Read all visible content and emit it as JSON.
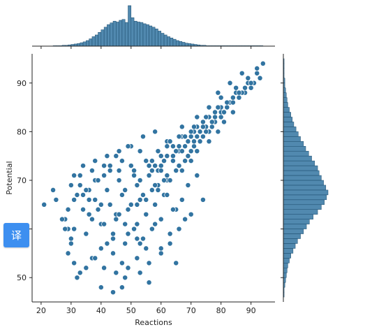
{
  "chart_data": {
    "type": "scatter",
    "title": "",
    "xlabel": "Reactions",
    "ylabel": "Potential",
    "xlim": [
      17,
      98
    ],
    "ylim": [
      45,
      96
    ],
    "xticks": [
      20,
      30,
      40,
      50,
      60,
      70,
      80,
      90
    ],
    "yticks": [
      50,
      60,
      70,
      80,
      90
    ],
    "grid": false,
    "legend": "none",
    "point_color": "#3274a1",
    "point_edge_color": "#ffffff",
    "hist_color": "#3274a1",
    "x": [
      21,
      24,
      25,
      28,
      29,
      30,
      29,
      31,
      33,
      32,
      30,
      28,
      27,
      29,
      31,
      34,
      36,
      38,
      41,
      43,
      46,
      40,
      37,
      35,
      42,
      44,
      47,
      49,
      52,
      55,
      54,
      51,
      48,
      45,
      39,
      36,
      33,
      31,
      34,
      38,
      42,
      46,
      50,
      53,
      57,
      59,
      62,
      61,
      58,
      55,
      52,
      49,
      44,
      40,
      37,
      41,
      45,
      48,
      53,
      56,
      60,
      63,
      66,
      68,
      65,
      62,
      59,
      56,
      50,
      47,
      43,
      39,
      35,
      32,
      30,
      33,
      37,
      41,
      45,
      49,
      54,
      58,
      62,
      66,
      70,
      72,
      69,
      67,
      64,
      60,
      57,
      52,
      48,
      44,
      40,
      36,
      34,
      38,
      42,
      46,
      51,
      55,
      59,
      63,
      67,
      71,
      74,
      76,
      73,
      70,
      68,
      65,
      61,
      57,
      53,
      49,
      45,
      41,
      43,
      47,
      52,
      56,
      60,
      64,
      68,
      72,
      75,
      78,
      80,
      77,
      74,
      71,
      69,
      66,
      62,
      58,
      54,
      50,
      46,
      48,
      53,
      57,
      61,
      65,
      69,
      73,
      77,
      80,
      82,
      84,
      81,
      79,
      76,
      72,
      70,
      67,
      63,
      59,
      55,
      51,
      56,
      60,
      64,
      68,
      72,
      76,
      80,
      83,
      86,
      85,
      83,
      81,
      78,
      75,
      71,
      67,
      64,
      60,
      58,
      62,
      66,
      70,
      74,
      78,
      82,
      86,
      88,
      90,
      89,
      87,
      84,
      81,
      77,
      73,
      69,
      65,
      62,
      66,
      71,
      75,
      79,
      84,
      88,
      91,
      93,
      92,
      90,
      86,
      82,
      78,
      74,
      70,
      67,
      72,
      76,
      80,
      85,
      89,
      92,
      94,
      87,
      83,
      79,
      44,
      47,
      56,
      65,
      40,
      38,
      53,
      60,
      35,
      31,
      58,
      63,
      70,
      74,
      52
    ],
    "y": [
      65,
      68,
      66,
      62,
      60,
      58,
      55,
      53,
      51,
      50,
      57,
      60,
      62,
      64,
      66,
      67,
      68,
      70,
      71,
      73,
      72,
      65,
      62,
      59,
      57,
      55,
      53,
      52,
      54,
      56,
      58,
      60,
      61,
      63,
      64,
      66,
      69,
      71,
      73,
      74,
      75,
      76,
      77,
      76,
      74,
      72,
      70,
      67,
      65,
      63,
      61,
      59,
      58,
      56,
      54,
      52,
      51,
      50,
      51,
      53,
      55,
      57,
      60,
      62,
      64,
      67,
      69,
      71,
      73,
      74,
      72,
      70,
      68,
      67,
      69,
      71,
      72,
      73,
      75,
      77,
      79,
      80,
      78,
      76,
      74,
      71,
      69,
      66,
      64,
      62,
      60,
      58,
      57,
      59,
      61,
      63,
      64,
      66,
      68,
      70,
      72,
      74,
      76,
      78,
      79,
      80,
      82,
      80,
      78,
      76,
      74,
      72,
      70,
      68,
      66,
      64,
      62,
      61,
      65,
      67,
      69,
      71,
      73,
      75,
      77,
      79,
      81,
      82,
      83,
      81,
      79,
      77,
      75,
      73,
      71,
      69,
      67,
      65,
      63,
      68,
      70,
      72,
      74,
      76,
      78,
      80,
      82,
      84,
      85,
      84,
      82,
      80,
      78,
      76,
      74,
      72,
      70,
      68,
      66,
      71,
      73,
      75,
      77,
      79,
      81,
      83,
      85,
      86,
      87,
      88,
      86,
      84,
      82,
      80,
      78,
      76,
      74,
      72,
      73,
      75,
      77,
      79,
      81,
      83,
      85,
      87,
      88,
      89,
      90,
      88,
      86,
      84,
      82,
      80,
      78,
      76,
      77,
      79,
      81,
      83,
      85,
      87,
      89,
      90,
      91,
      92,
      90,
      88,
      86,
      84,
      82,
      80,
      81,
      83,
      85,
      87,
      89,
      91,
      93,
      94,
      92,
      90,
      88,
      47,
      48,
      49,
      53,
      48,
      54,
      57,
      56,
      52,
      60,
      61,
      59,
      63,
      66,
      65
    ],
    "x_marginal": {
      "bin_start": 24,
      "bin_width": 1,
      "counts": [
        1,
        1,
        1,
        2,
        2,
        3,
        4,
        5,
        6,
        8,
        10,
        13,
        17,
        22,
        26,
        32,
        38,
        44,
        50,
        54,
        58,
        56,
        60,
        62,
        55,
        94,
        66,
        58,
        56,
        55,
        52,
        50,
        47,
        44,
        40,
        35,
        30,
        26,
        22,
        19,
        16,
        13,
        11,
        9,
        7,
        6,
        5,
        4,
        3,
        2,
        2,
        1,
        1,
        1,
        1,
        1,
        1,
        1,
        1,
        1,
        1,
        1,
        1,
        1,
        1,
        1,
        1,
        1,
        1,
        1
      ]
    },
    "y_marginal": {
      "bin_start": 46,
      "bin_width": 1,
      "counts": [
        1,
        1,
        2,
        3,
        4,
        5,
        6,
        8,
        10,
        13,
        16,
        19,
        23,
        27,
        31,
        35,
        40,
        46,
        51,
        55,
        58,
        60,
        57,
        54,
        51,
        48,
        46,
        42,
        38,
        34,
        30,
        27,
        23,
        20,
        17,
        14,
        12,
        10,
        8,
        6,
        5,
        4,
        3,
        2,
        2,
        1,
        1,
        1,
        1
      ]
    }
  },
  "translate_widget": {
    "label": "译",
    "icon": "translate-icon",
    "color": "#3d8ff0"
  }
}
